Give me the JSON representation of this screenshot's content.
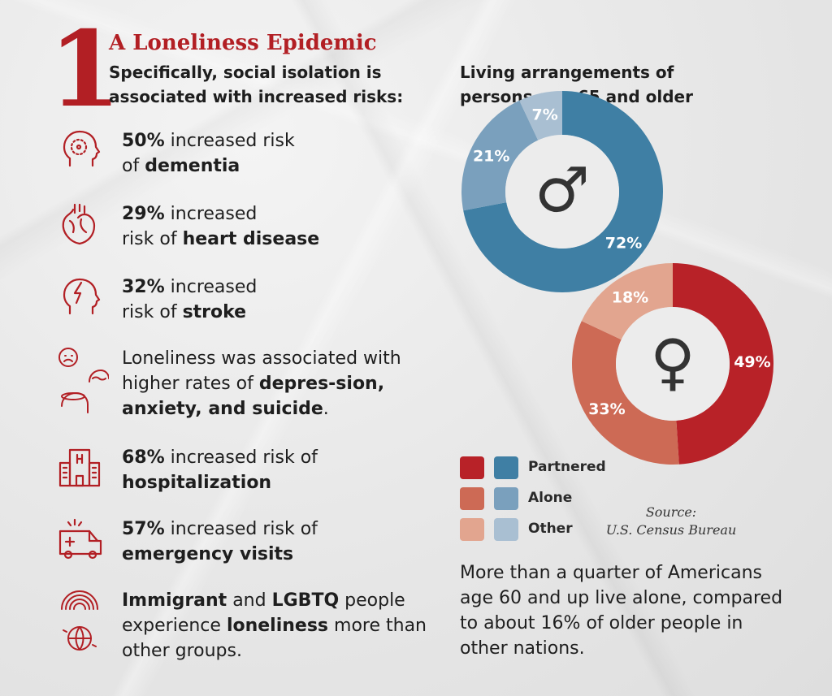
{
  "header": {
    "number": "1",
    "title": "A Loneliness Epidemic",
    "subtitle": "Specifically, social isolation is associated with increased risks:"
  },
  "risks": [
    {
      "icon": "head-circle-icon",
      "bold1": "50%",
      "text1": " increased risk",
      "text2": "of ",
      "bold2": "dementia",
      "text3": ""
    },
    {
      "icon": "heart-icon",
      "bold1": "29%",
      "text1": " increased",
      "text2": "risk of ",
      "bold2": "heart disease",
      "text3": ""
    },
    {
      "icon": "head-lightning-icon",
      "bold1": "32%",
      "text1": " increased",
      "text2": "risk of ",
      "bold2": "stroke",
      "text3": ""
    },
    {
      "icon": "mental-health-icon",
      "plain": "Loneliness was associated with higher rates of ",
      "bold2": "depres-sion, anxiety, and suicide",
      "text3": "."
    },
    {
      "icon": "hospital-icon",
      "bold1": "68%",
      "text1": " increased risk of",
      "text2": "",
      "bold2": "hospitalization",
      "text3": ""
    },
    {
      "icon": "ambulance-icon",
      "bold1": "57%",
      "text1": " increased risk of",
      "text2": "",
      "bold2": "emergency visits",
      "text3": ""
    },
    {
      "icon": "rainbow-globe-icon",
      "bold1": "Immigrant",
      "text1": " and ",
      "bold1b": "LGBTQ",
      "text1b": " people experience ",
      "bold2": "loneliness",
      "text3": " more than other groups."
    }
  ],
  "chart_title": "Living arrangements of persons age 65 and older",
  "chart_data": [
    {
      "type": "pie",
      "name": "male",
      "symbol": "♂",
      "categories": [
        "Partnered",
        "Alone",
        "Other"
      ],
      "values": [
        72,
        21,
        7
      ],
      "labels": [
        "72%",
        "21%",
        "7%"
      ],
      "colors": [
        "#3f7fa4",
        "#7aa0bd",
        "#a9bfd2"
      ]
    },
    {
      "type": "pie",
      "name": "female",
      "symbol": "♀",
      "categories": [
        "Partnered",
        "Alone",
        "Other"
      ],
      "values": [
        49,
        33,
        18
      ],
      "labels": [
        "49%",
        "33%",
        "18%"
      ],
      "colors": [
        "#b82228",
        "#cd6a55",
        "#e2a58f"
      ]
    }
  ],
  "legend": [
    {
      "label": "Partnered",
      "female_color": "#b82228",
      "male_color": "#3f7fa4"
    },
    {
      "label": "Alone",
      "female_color": "#cd6a55",
      "male_color": "#7aa0bd"
    },
    {
      "label": "Other",
      "female_color": "#e2a58f",
      "male_color": "#a9bfd2"
    }
  ],
  "source": {
    "label": "Source:",
    "text": "U.S. Census Bureau"
  },
  "footnote": "More than a quarter of Americans age 60 and up live alone, compared to about 16% of older people in other nations."
}
